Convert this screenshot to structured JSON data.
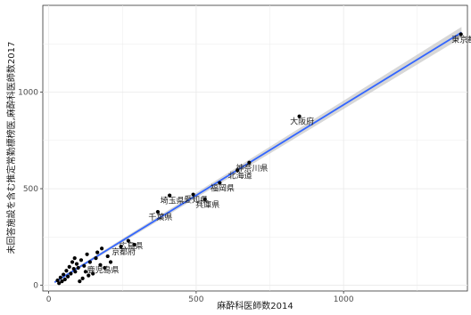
{
  "chart_data": {
    "type": "scatter",
    "xlabel": "麻酔科医師数2014",
    "ylabel": "未回答施設を含む推定常勤標榜医,麻酔科医師数2017",
    "xlim": [
      -20,
      1420
    ],
    "ylim": [
      -30,
      1450
    ],
    "x_ticks": [
      0,
      500,
      1000
    ],
    "y_ticks": [
      0,
      500,
      1000
    ],
    "grid": true,
    "colors": {
      "points": "#000000",
      "line": "#3366ff",
      "band": "#bdbdbd",
      "panel": "#ffffff",
      "grid": "#ebebeb"
    },
    "trend": {
      "x": [
        20,
        1400
      ],
      "y": [
        15,
        1310
      ],
      "band_halfwidth_low": 6,
      "band_halfwidth_high": 28
    },
    "points": [
      {
        "x": 1398,
        "y": 1300,
        "label": "東京都"
      },
      {
        "x": 850,
        "y": 875,
        "label": "大阪府"
      },
      {
        "x": 680,
        "y": 635,
        "label": "神奈川県"
      },
      {
        "x": 640,
        "y": 595,
        "label": "北海道"
      },
      {
        "x": 580,
        "y": 530,
        "label": "福岡県"
      },
      {
        "x": 490,
        "y": 470,
        "label": "愛知県"
      },
      {
        "x": 410,
        "y": 465,
        "label": "埼玉県"
      },
      {
        "x": 530,
        "y": 445,
        "label": "兵庫県"
      },
      {
        "x": 370,
        "y": 380,
        "label": "千葉県"
      },
      {
        "x": 270,
        "y": 230,
        "label": "広島県"
      },
      {
        "x": 245,
        "y": 200,
        "label": "京都府"
      },
      {
        "x": 175,
        "y": 105,
        "label": "鹿児島県"
      },
      {
        "x": 290,
        "y": 210
      },
      {
        "x": 180,
        "y": 190
      },
      {
        "x": 160,
        "y": 140
      },
      {
        "x": 140,
        "y": 120
      },
      {
        "x": 130,
        "y": 160
      },
      {
        "x": 120,
        "y": 100
      },
      {
        "x": 110,
        "y": 130
      },
      {
        "x": 100,
        "y": 90
      },
      {
        "x": 95,
        "y": 110
      },
      {
        "x": 90,
        "y": 70
      },
      {
        "x": 85,
        "y": 85
      },
      {
        "x": 80,
        "y": 120
      },
      {
        "x": 75,
        "y": 60
      },
      {
        "x": 70,
        "y": 95
      },
      {
        "x": 65,
        "y": 45
      },
      {
        "x": 60,
        "y": 75
      },
      {
        "x": 55,
        "y": 30
      },
      {
        "x": 50,
        "y": 55
      },
      {
        "x": 45,
        "y": 20
      },
      {
        "x": 40,
        "y": 40
      },
      {
        "x": 35,
        "y": 10
      },
      {
        "x": 30,
        "y": 25
      },
      {
        "x": 150,
        "y": 60
      },
      {
        "x": 135,
        "y": 50
      },
      {
        "x": 115,
        "y": 35
      },
      {
        "x": 105,
        "y": 20
      },
      {
        "x": 125,
        "y": 70
      },
      {
        "x": 200,
        "y": 150
      },
      {
        "x": 210,
        "y": 120
      },
      {
        "x": 190,
        "y": 90
      },
      {
        "x": 165,
        "y": 170
      },
      {
        "x": 88,
        "y": 140
      }
    ]
  }
}
